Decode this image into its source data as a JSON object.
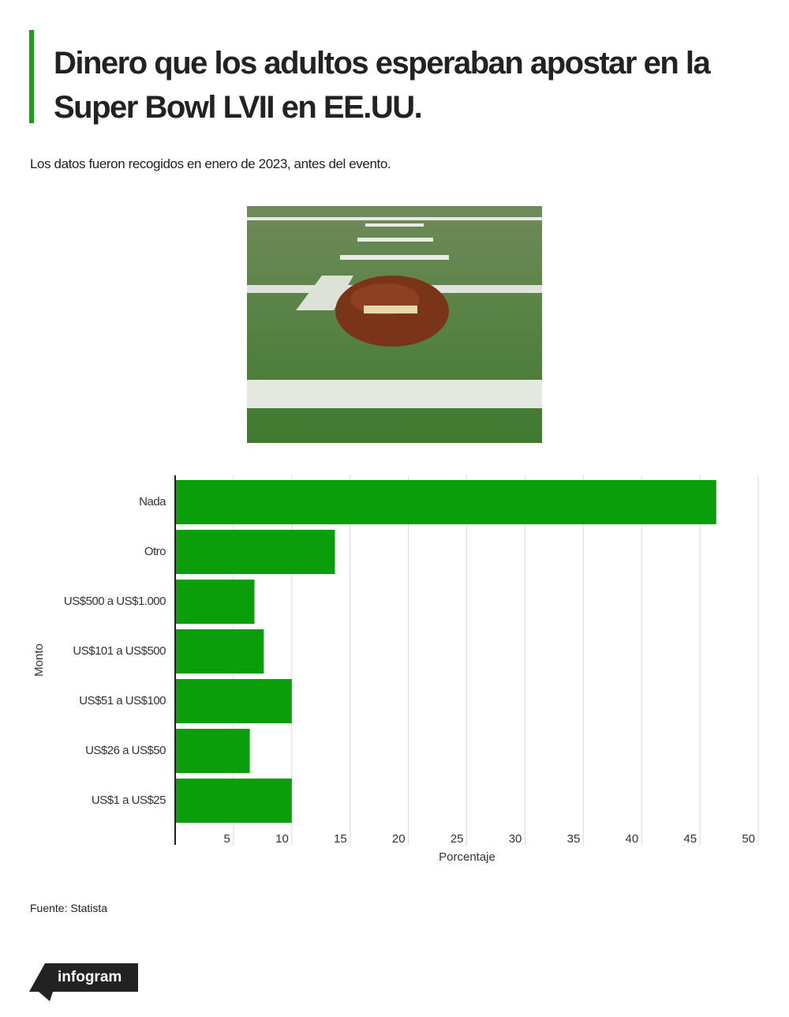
{
  "header": {
    "title": "Dinero que los adultos esperaban apostar en la Super Bowl LVII en EE.UU.",
    "subtitle": "Los datos fueron recogidos en enero de 2023, antes del evento."
  },
  "chart_data": {
    "type": "hbar",
    "categories": [
      "Nada",
      "Otro",
      "US$500 a US$1.000",
      "US$101 a US$500",
      "US$51 a US$100",
      "US$26 a US$50",
      "US$1 a US$25"
    ],
    "values": [
      46.4,
      13.7,
      6.8,
      7.6,
      10,
      6.4,
      10
    ],
    "color": "#0a9e0a",
    "xlim": [
      0,
      50
    ],
    "xticks": [
      5,
      10,
      15,
      20,
      25,
      30,
      35,
      40,
      45,
      50
    ],
    "grid": true,
    "xlabel": "Porcentaje",
    "ylabel": "Monto"
  },
  "footer": {
    "source": "Fuente: Statista",
    "logo": "infogram"
  }
}
